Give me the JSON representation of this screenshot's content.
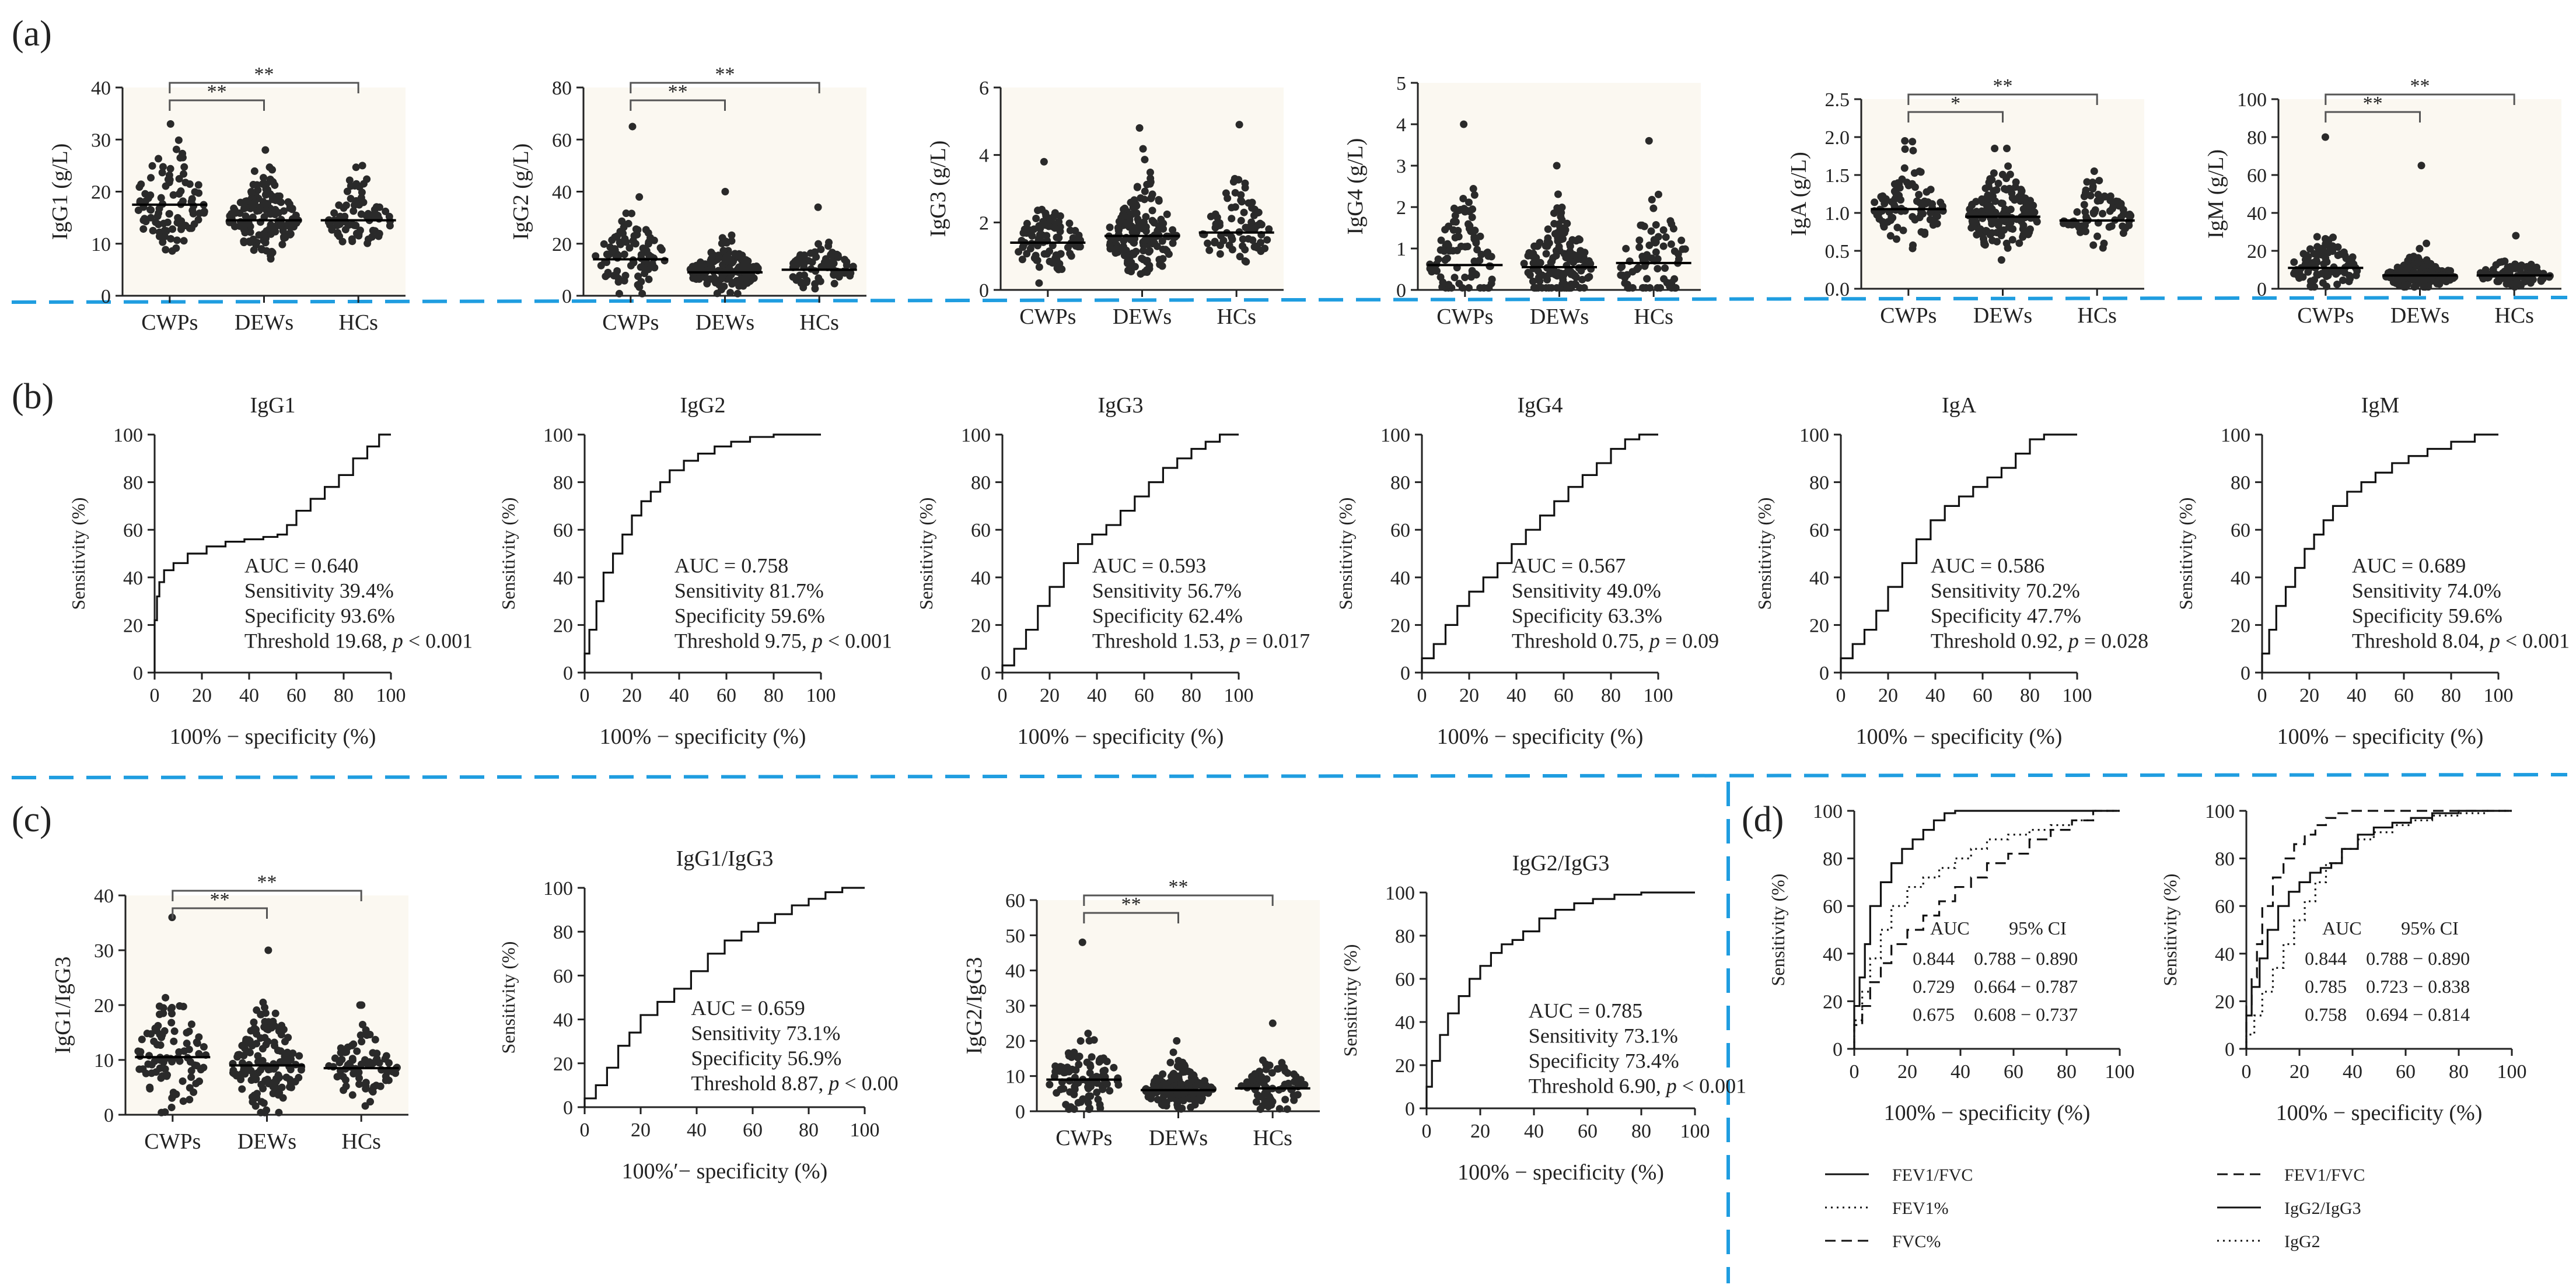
{
  "figure": {
    "panel_labels": [
      "(a)",
      "(b)",
      "(c)",
      "(d)"
    ],
    "divider_color": "#1f9de0",
    "plot_bg": "#fbf8f1"
  },
  "chart_data": [
    {
      "id": "a1",
      "panel": "a",
      "type": "scatter",
      "ylabel": "IgG1 (g/L)",
      "ylim": [
        0,
        40
      ],
      "yticks": [
        0,
        10,
        20,
        30,
        40
      ],
      "categories": [
        "CWPs",
        "DEWs",
        "HCs"
      ],
      "n": [
        90,
        150,
        75
      ],
      "means": [
        17.5,
        14.5,
        14.5
      ],
      "spread": [
        6,
        4,
        3
      ],
      "max": [
        33,
        28,
        25
      ],
      "sig": [
        {
          "label": "**",
          "from": 0,
          "to": 1
        },
        {
          "label": "**",
          "from": 0,
          "to": 2
        }
      ]
    },
    {
      "id": "a2",
      "panel": "a",
      "type": "scatter",
      "ylabel": "IgG2 (g/L)",
      "ylim": [
        0,
        80
      ],
      "yticks": [
        0,
        20,
        40,
        60,
        80
      ],
      "categories": [
        "CWPs",
        "DEWs",
        "HCs"
      ],
      "n": [
        90,
        150,
        75
      ],
      "means": [
        14,
        9,
        10
      ],
      "spread": [
        8,
        5,
        5
      ],
      "max": [
        65,
        40,
        34
      ],
      "sig": [
        {
          "label": "**",
          "from": 0,
          "to": 1
        },
        {
          "label": "**",
          "from": 0,
          "to": 2
        }
      ]
    },
    {
      "id": "a3",
      "panel": "a",
      "type": "scatter",
      "ylabel": "IgG3 (g/L)",
      "ylim": [
        0,
        6
      ],
      "yticks": [
        0,
        2,
        4,
        6
      ],
      "categories": [
        "CWPs",
        "DEWs",
        "HCs"
      ],
      "n": [
        90,
        150,
        75
      ],
      "means": [
        1.4,
        1.6,
        1.7
      ],
      "spread": [
        0.6,
        0.8,
        0.7
      ],
      "max": [
        3.8,
        4.8,
        4.9
      ],
      "sig": []
    },
    {
      "id": "a4",
      "panel": "a",
      "type": "scatter",
      "ylabel": "IgG4 (g/L)",
      "ylim": [
        0,
        5
      ],
      "yticks": [
        0,
        1,
        2,
        3,
        4,
        5
      ],
      "categories": [
        "CWPs",
        "DEWs",
        "HCs"
      ],
      "n": [
        90,
        150,
        75
      ],
      "means": [
        0.6,
        0.55,
        0.65
      ],
      "spread": [
        0.8,
        0.6,
        0.8
      ],
      "max": [
        4.0,
        3.0,
        3.6
      ],
      "sig": []
    },
    {
      "id": "a5",
      "panel": "a",
      "type": "scatter",
      "ylabel": "IgA (g/L)",
      "ylim": [
        0,
        2.5
      ],
      "yticks": [
        0.0,
        0.5,
        1.0,
        1.5,
        2.0,
        2.5
      ],
      "categories": [
        "CWPs",
        "DEWs",
        "HCs"
      ],
      "n": [
        90,
        150,
        75
      ],
      "means": [
        1.05,
        0.95,
        0.9
      ],
      "spread": [
        0.3,
        0.3,
        0.25
      ],
      "max": [
        1.95,
        1.85,
        1.55
      ],
      "sig": [
        {
          "label": "*",
          "from": 0,
          "to": 1
        },
        {
          "label": "**",
          "from": 0,
          "to": 2
        }
      ]
    },
    {
      "id": "a6",
      "panel": "a",
      "type": "scatter",
      "ylabel": "IgM (g/L)",
      "ylim": [
        0,
        100
      ],
      "yticks": [
        0,
        20,
        40,
        60,
        80,
        100
      ],
      "categories": [
        "CWPs",
        "DEWs",
        "HCs"
      ],
      "n": [
        90,
        150,
        75
      ],
      "means": [
        11,
        7,
        7
      ],
      "spread": [
        8,
        5,
        5
      ],
      "max": [
        80,
        65,
        28
      ],
      "sig": [
        {
          "label": "**",
          "from": 0,
          "to": 1
        },
        {
          "label": "**",
          "from": 0,
          "to": 2
        }
      ]
    },
    {
      "id": "b1",
      "panel": "b",
      "type": "line",
      "title": "IgG1",
      "xlabel": "100% − specificity (%)",
      "ylabel": "Sensitivity (%)",
      "xlim": [
        0,
        100
      ],
      "ylim": [
        0,
        100
      ],
      "ticks": [
        0,
        20,
        40,
        60,
        80,
        100
      ],
      "x": [
        0,
        1,
        2,
        4,
        8,
        14,
        22,
        30,
        38,
        46,
        52,
        56,
        60,
        66,
        72,
        78,
        84,
        90,
        95,
        100
      ],
      "y": [
        0,
        22,
        32,
        38,
        43,
        46,
        50,
        53,
        55,
        56,
        57,
        58,
        62,
        68,
        73,
        78,
        83,
        90,
        95,
        100
      ],
      "stats": [
        "AUC = 0.640",
        "Sensitivity 39.4%",
        "Specificity 93.6%",
        "Threshold 19.68, p < 0.001"
      ]
    },
    {
      "id": "b2",
      "panel": "b",
      "type": "line",
      "title": "IgG2",
      "xlabel": "100% − specificity (%)",
      "ylabel": "Sensitivity (%)",
      "xlim": [
        0,
        100
      ],
      "ylim": [
        0,
        100
      ],
      "ticks": [
        0,
        20,
        40,
        60,
        80,
        100
      ],
      "x": [
        0,
        2,
        5,
        8,
        12,
        16,
        20,
        24,
        28,
        32,
        36,
        42,
        48,
        55,
        62,
        70,
        80,
        90,
        100
      ],
      "y": [
        0,
        8,
        18,
        30,
        42,
        50,
        58,
        66,
        72,
        76,
        80,
        85,
        89,
        92,
        95,
        97,
        99,
        100,
        100
      ],
      "stats": [
        "AUC = 0.758",
        "Sensitivity 81.7%",
        "Specificity 59.6%",
        "Threshold 9.75, p < 0.001"
      ]
    },
    {
      "id": "b3",
      "panel": "b",
      "type": "line",
      "title": "IgG3",
      "xlabel": "100% − specificity (%)",
      "ylabel": "Sensitivity (%)",
      "xlim": [
        0,
        100
      ],
      "ylim": [
        0,
        100
      ],
      "ticks": [
        0,
        20,
        40,
        60,
        80,
        100
      ],
      "x": [
        0,
        5,
        10,
        15,
        20,
        26,
        32,
        38,
        44,
        50,
        56,
        62,
        68,
        74,
        80,
        86,
        92,
        100
      ],
      "y": [
        0,
        3,
        10,
        18,
        28,
        36,
        46,
        54,
        58,
        62,
        68,
        74,
        80,
        86,
        90,
        94,
        97,
        100
      ],
      "stats": [
        "AUC = 0.593",
        "Sensitivity 56.7%",
        "Specificity 62.4%",
        "Threshold 1.53, p = 0.017"
      ]
    },
    {
      "id": "b4",
      "panel": "b",
      "type": "line",
      "title": "IgG4",
      "xlabel": "100% − specificity (%)",
      "ylabel": "Sensitivity (%)",
      "xlim": [
        0,
        100
      ],
      "ylim": [
        0,
        100
      ],
      "ticks": [
        0,
        20,
        40,
        60,
        80,
        100
      ],
      "x": [
        0,
        5,
        10,
        15,
        20,
        26,
        32,
        38,
        44,
        50,
        56,
        62,
        68,
        74,
        80,
        86,
        92,
        100
      ],
      "y": [
        0,
        6,
        12,
        20,
        28,
        34,
        40,
        46,
        54,
        60,
        66,
        72,
        78,
        83,
        88,
        94,
        98,
        100
      ],
      "stats": [
        "AUC = 0.567",
        "Sensitivity 49.0%",
        "Specificity 63.3%",
        "Threshold 0.75, p = 0.09"
      ]
    },
    {
      "id": "b5",
      "panel": "b",
      "type": "line",
      "title": "IgA",
      "xlabel": "100% − specificity (%)",
      "ylabel": "Sensitivity (%)",
      "xlim": [
        0,
        100
      ],
      "ylim": [
        0,
        100
      ],
      "ticks": [
        0,
        20,
        40,
        60,
        80,
        100
      ],
      "x": [
        0,
        5,
        10,
        15,
        20,
        26,
        32,
        38,
        44,
        50,
        56,
        62,
        68,
        74,
        80,
        86,
        92,
        100
      ],
      "y": [
        0,
        6,
        12,
        18,
        26,
        36,
        46,
        56,
        64,
        70,
        74,
        78,
        82,
        86,
        92,
        98,
        100,
        100
      ],
      "stats": [
        "AUC = 0.586",
        "Sensitivity 70.2%",
        "Specificity 47.7%",
        "Threshold 0.92, p = 0.028"
      ]
    },
    {
      "id": "b6",
      "panel": "b",
      "type": "line",
      "title": "IgM",
      "xlabel": "100% − specificity (%)",
      "ylabel": "Sensitivity (%)",
      "xlim": [
        0,
        100
      ],
      "ylim": [
        0,
        100
      ],
      "ticks": [
        0,
        20,
        40,
        60,
        80,
        100
      ],
      "x": [
        0,
        3,
        6,
        10,
        14,
        18,
        22,
        26,
        30,
        36,
        42,
        48,
        55,
        62,
        70,
        80,
        90,
        100
      ],
      "y": [
        0,
        8,
        18,
        28,
        36,
        44,
        52,
        58,
        64,
        70,
        76,
        80,
        84,
        88,
        91,
        94,
        97,
        100
      ],
      "stats": [
        "AUC = 0.689",
        "Sensitivity 74.0%",
        "Specificity 59.6%",
        "Threshold 8.04, p < 0.001"
      ]
    },
    {
      "id": "c1",
      "panel": "c",
      "type": "scatter",
      "ylabel": "IgG1/IgG3",
      "ylim": [
        0,
        40
      ],
      "yticks": [
        0,
        10,
        20,
        30,
        40
      ],
      "categories": [
        "CWPs",
        "DEWs",
        "HCs"
      ],
      "n": [
        90,
        150,
        75
      ],
      "means": [
        10.5,
        9,
        8.5
      ],
      "spread": [
        6,
        5,
        3.5
      ],
      "max": [
        36,
        30,
        20
      ],
      "sig": [
        {
          "label": "**",
          "from": 0,
          "to": 1
        },
        {
          "label": "**",
          "from": 0,
          "to": 2
        }
      ]
    },
    {
      "id": "c2",
      "panel": "c",
      "type": "line",
      "title": "IgG1/IgG3",
      "xlabel": "100%′− specificity (%)",
      "ylabel": "Sensitivity (%)",
      "xlim": [
        0,
        100
      ],
      "ylim": [
        0,
        100
      ],
      "ticks": [
        0,
        20,
        40,
        60,
        80,
        100
      ],
      "x": [
        0,
        4,
        8,
        12,
        16,
        20,
        26,
        32,
        38,
        44,
        50,
        56,
        62,
        68,
        74,
        80,
        86,
        92,
        100
      ],
      "y": [
        0,
        4,
        10,
        18,
        28,
        34,
        42,
        48,
        54,
        62,
        70,
        76,
        80,
        84,
        88,
        92,
        95,
        98,
        100
      ],
      "stats": [
        "AUC = 0.659",
        "Sensitivity 73.1%",
        "Specificity 56.9%",
        "Threshold 8.87, p < 0.00"
      ]
    },
    {
      "id": "c3",
      "panel": "c",
      "type": "scatter",
      "ylabel": "IgG2/IgG3",
      "ylim": [
        0,
        60
      ],
      "yticks": [
        0,
        10,
        20,
        30,
        40,
        50,
        60
      ],
      "categories": [
        "CWPs",
        "DEWs",
        "HCs"
      ],
      "n": [
        90,
        150,
        75
      ],
      "means": [
        9,
        6,
        6.5
      ],
      "spread": [
        6,
        3.5,
        4
      ],
      "max": [
        48,
        20,
        25
      ],
      "sig": [
        {
          "label": "**",
          "from": 0,
          "to": 1
        },
        {
          "label": "**",
          "from": 0,
          "to": 2
        }
      ]
    },
    {
      "id": "c4",
      "panel": "c",
      "type": "line",
      "title": "IgG2/IgG3",
      "xlabel": "100% − specificity (%)",
      "ylabel": "Sensitivity (%)",
      "xlim": [
        0,
        100
      ],
      "ylim": [
        0,
        100
      ],
      "ticks": [
        0,
        20,
        40,
        60,
        80,
        100
      ],
      "x": [
        0,
        2,
        5,
        8,
        12,
        16,
        20,
        24,
        28,
        32,
        36,
        42,
        48,
        55,
        62,
        70,
        80,
        90,
        100
      ],
      "y": [
        0,
        10,
        22,
        34,
        44,
        52,
        60,
        66,
        72,
        76,
        78,
        82,
        88,
        92,
        95,
        97,
        99,
        100,
        100
      ],
      "stats": [
        "AUC = 0.785",
        "Sensitivity 73.1%",
        "Specificity 73.4%",
        "Threshold 6.90, p < 0.001"
      ]
    },
    {
      "id": "d1",
      "panel": "d",
      "type": "line",
      "xlabel": "100% − specificity (%)",
      "ylabel": "Sensitivity (%)",
      "xlim": [
        0,
        100
      ],
      "ylim": [
        0,
        100
      ],
      "ticks": [
        0,
        20,
        40,
        60,
        80,
        100
      ],
      "series": [
        {
          "name": "FEV1/FVC",
          "dash": "solid",
          "x": [
            0,
            2,
            4,
            6,
            10,
            14,
            18,
            22,
            26,
            30,
            34,
            38,
            44,
            50,
            60,
            70,
            80,
            90,
            100
          ],
          "y": [
            0,
            18,
            30,
            44,
            60,
            70,
            78,
            84,
            88,
            92,
            96,
            99,
            100,
            100,
            100,
            100,
            100,
            100,
            100
          ]
        },
        {
          "name": "FEV1%",
          "dash": "dot",
          "x": [
            0,
            3,
            6,
            10,
            14,
            20,
            26,
            32,
            38,
            44,
            50,
            58,
            66,
            74,
            82,
            90,
            100
          ],
          "y": [
            0,
            12,
            24,
            38,
            50,
            60,
            68,
            72,
            76,
            80,
            84,
            88,
            90,
            92,
            94,
            96,
            100
          ]
        },
        {
          "name": "FVC%",
          "dash": "dash",
          "x": [
            0,
            3,
            6,
            10,
            14,
            20,
            26,
            32,
            38,
            44,
            50,
            58,
            66,
            74,
            82,
            90,
            100
          ],
          "y": [
            0,
            10,
            18,
            28,
            36,
            44,
            50,
            56,
            62,
            68,
            72,
            78,
            82,
            88,
            92,
            96,
            100
          ]
        }
      ],
      "table_header": [
        "AUC",
        "95% CI"
      ],
      "table": [
        [
          "0.844",
          "0.788 − 0.890"
        ],
        [
          "0.729",
          "0.664 − 0.787"
        ],
        [
          "0.675",
          "0.608 − 0.737"
        ]
      ]
    },
    {
      "id": "d2",
      "panel": "d",
      "type": "line",
      "xlabel": "100% − specificity (%)",
      "ylabel": "Sensitivity (%)",
      "xlim": [
        0,
        100
      ],
      "ylim": [
        0,
        100
      ],
      "ticks": [
        0,
        20,
        40,
        60,
        80,
        100
      ],
      "series": [
        {
          "name": "FEV1/FVC",
          "dash": "dash",
          "x": [
            0,
            2,
            4,
            6,
            10,
            14,
            18,
            22,
            26,
            30,
            34,
            38,
            44,
            50,
            60,
            70,
            80,
            90,
            100
          ],
          "y": [
            0,
            18,
            30,
            44,
            60,
            72,
            80,
            86,
            90,
            94,
            97,
            99,
            100,
            100,
            100,
            100,
            100,
            100,
            100
          ]
        },
        {
          "name": "IgG2/IgG3",
          "dash": "solid",
          "x": [
            0,
            2,
            5,
            8,
            12,
            16,
            20,
            24,
            28,
            32,
            36,
            42,
            48,
            55,
            62,
            70,
            80,
            90,
            100
          ],
          "y": [
            0,
            14,
            26,
            38,
            50,
            60,
            66,
            70,
            74,
            76,
            78,
            84,
            90,
            93,
            95,
            97,
            99,
            100,
            100
          ]
        },
        {
          "name": "IgG2",
          "dash": "dot",
          "x": [
            0,
            3,
            6,
            10,
            14,
            18,
            22,
            26,
            30,
            36,
            42,
            48,
            55,
            62,
            70,
            80,
            90,
            100
          ],
          "y": [
            0,
            6,
            14,
            24,
            34,
            44,
            54,
            62,
            70,
            78,
            84,
            88,
            91,
            94,
            96,
            98,
            99,
            100
          ]
        }
      ],
      "table_header": [
        "AUC",
        "95% CI"
      ],
      "table": [
        [
          "0.844",
          "0.788 − 0.890"
        ],
        [
          "0.785",
          "0.723 − 0.838"
        ],
        [
          "0.758",
          "0.694 − 0.814"
        ]
      ]
    }
  ]
}
